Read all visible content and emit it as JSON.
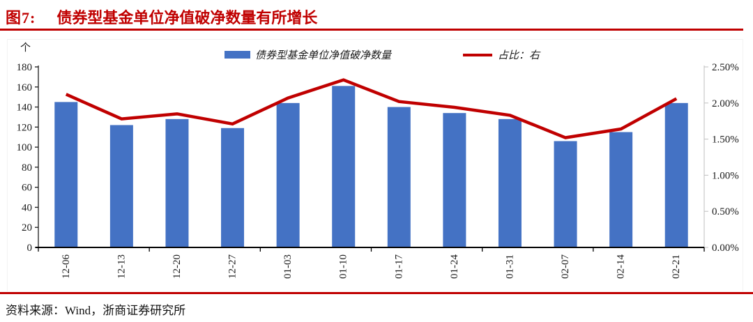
{
  "title": {
    "figure_label": "图7:",
    "figure_title": "债券型基金单位净值破净数量有所增长"
  },
  "colors": {
    "accent_red": "#c00000",
    "bar_blue": "#4472c4",
    "axis_black": "#1a1a1a",
    "axis_gray": "#bfbfbf"
  },
  "legend": {
    "bar_label": "债券型基金单位净值破净数量",
    "line_label": "占比：右"
  },
  "footer": {
    "source": "资料来源：Wind，浙商证券研究所"
  },
  "chart_data": {
    "type": "bar+line",
    "title": "债券型基金单位净值破净数量有所增长",
    "categories": [
      "12-06",
      "12-13",
      "12-20",
      "12-27",
      "01-03",
      "01-10",
      "01-17",
      "01-24",
      "01-31",
      "02-07",
      "02-14",
      "02-21"
    ],
    "series": [
      {
        "name": "债券型基金单位净值破净数量",
        "type": "bar",
        "axis": "left",
        "values": [
          145,
          122,
          128,
          119,
          144,
          161,
          140,
          134,
          128,
          106,
          115,
          144
        ]
      },
      {
        "name": "占比：右",
        "type": "line",
        "axis": "right",
        "values": [
          2.12,
          1.78,
          1.85,
          1.71,
          2.07,
          2.32,
          2.02,
          1.94,
          1.83,
          1.52,
          1.64,
          2.06
        ]
      }
    ],
    "left_axis": {
      "unit_label": "个",
      "min": 0,
      "max": 180,
      "ticks": [
        0,
        20,
        40,
        60,
        80,
        100,
        120,
        140,
        160,
        180
      ]
    },
    "right_axis": {
      "min": 0,
      "max": 2.5,
      "tick_labels": [
        "0.00%",
        "0.50%",
        "1.00%",
        "1.50%",
        "2.00%",
        "2.50%"
      ]
    },
    "grid": false,
    "legend_position": "top"
  }
}
